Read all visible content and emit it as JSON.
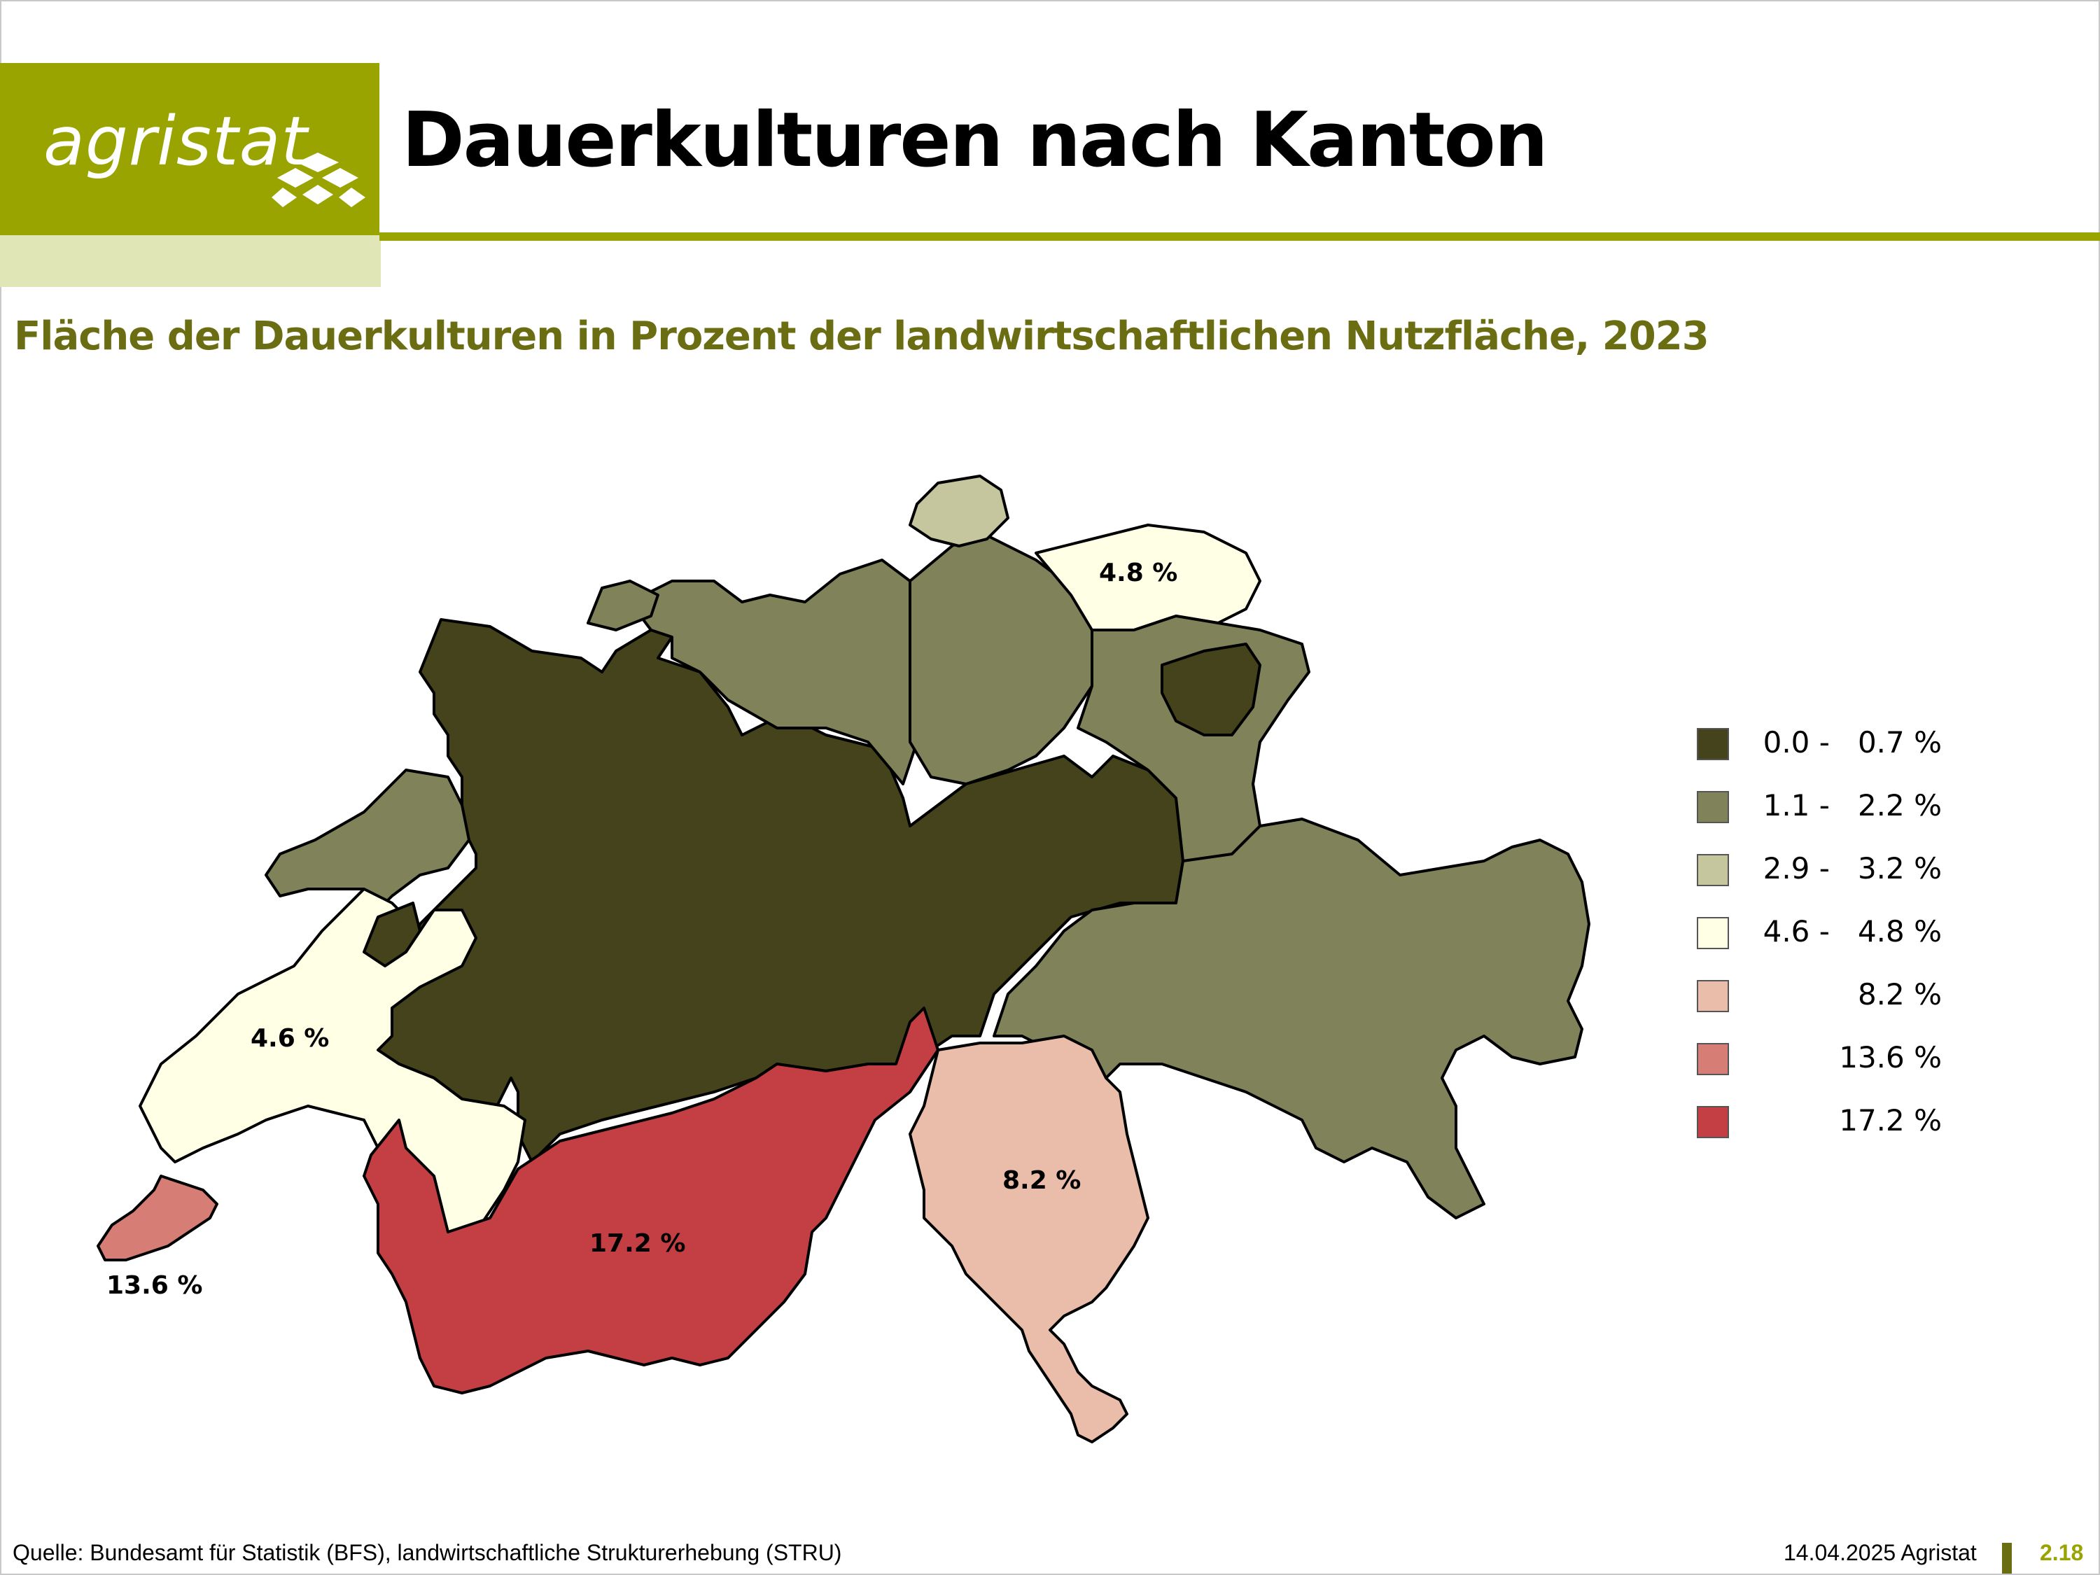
{
  "header": {
    "logo_text": "agristat",
    "title": "Dauerkulturen nach Kanton",
    "subtitle": "Fläche der Dauerkulturen in Prozent der landwirtschaftlichen Nutzfläche, 2023"
  },
  "colors": {
    "brand": "#9aa400",
    "brand_light": "#e1e6b6",
    "subtitle": "#6b6d12",
    "class_0": "#44431b",
    "class_1": "#80825a",
    "class_2": "#c5c59e",
    "class_3": "#ffffe6",
    "class_4": "#eabdaa",
    "class_5": "#d67d75",
    "class_6": "#c33f43"
  },
  "legend": [
    {
      "label": "0.0 -   0.7 %",
      "color": "#44431b"
    },
    {
      "label": "1.1 -   2.2 %",
      "color": "#80825a"
    },
    {
      "label": "2.9 -   3.2 %",
      "color": "#c5c59e"
    },
    {
      "label": "4.6 -   4.8 %",
      "color": "#ffffe6"
    },
    {
      "label": "8.2 %",
      "color": "#eabdaa"
    },
    {
      "label": "13.6 %",
      "color": "#d67d75"
    },
    {
      "label": "17.2 %",
      "color": "#c33f43"
    }
  ],
  "map": {
    "labels": {
      "thurgau": "4.8 %",
      "vaud": "4.6 %",
      "geneva": "13.6 %",
      "valais": "17.2 %",
      "ticino": "8.2 %"
    }
  },
  "footer": {
    "source": "Quelle: Bundesamt für Statistik (BFS), landwirtschaftliche Strukturerhebung (STRU)",
    "date": "14.04.2025 Agristat",
    "page": "2.18"
  }
}
